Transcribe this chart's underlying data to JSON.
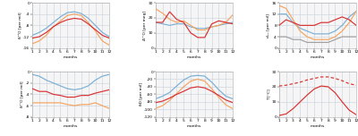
{
  "months": [
    1,
    2,
    3,
    4,
    5,
    6,
    7,
    8,
    9,
    10,
    11,
    12
  ],
  "colors": {
    "blue": "#7bafd4",
    "orange": "#f4a460",
    "red": "#d93030",
    "gray": "#a0a0a0"
  },
  "d18O": {
    "blue": [
      -11.5,
      -10.5,
      -9.0,
      -7.0,
      -5.0,
      -3.5,
      -3.2,
      -3.8,
      -5.5,
      -8.0,
      -10.5,
      -12.0
    ],
    "orange": [
      -14.5,
      -13.5,
      -11.5,
      -8.5,
      -6.5,
      -4.5,
      -4.0,
      -4.5,
      -7.0,
      -10.0,
      -13.5,
      -15.0
    ],
    "red": [
      -12.5,
      -12.0,
      -10.5,
      -8.5,
      -7.0,
      -6.0,
      -5.5,
      -5.8,
      -7.5,
      -9.5,
      -11.5,
      -12.5
    ]
  },
  "d18O_ylim": [
    -16,
    0
  ],
  "d18O_yticks": [
    0,
    -4,
    -8,
    -12,
    -16
  ],
  "d18O_ylabel": "δ¹⁸O [per mil]",
  "Dex": {
    "blue": [
      17,
      16,
      15,
      16,
      16,
      14,
      13,
      13,
      14,
      15,
      16,
      17
    ],
    "orange": [
      26,
      23,
      19,
      17,
      18,
      15,
      12,
      12,
      14,
      15,
      17,
      22
    ],
    "red": [
      17,
      17,
      24,
      19,
      17,
      10,
      7,
      7,
      16,
      18,
      17,
      16
    ]
  },
  "Dex_ylim": [
    0,
    30
  ],
  "Dex_yticks": [
    0,
    10,
    20,
    30
  ],
  "Dex_ylabel": "Δ¹⁷O [per meg]",
  "dex": {
    "blue": [
      12,
      12,
      9,
      7,
      6,
      5,
      5,
      5,
      6,
      8,
      11,
      13
    ],
    "orange": [
      15,
      14,
      10,
      6,
      4,
      3,
      3,
      3,
      4,
      6,
      9,
      13
    ],
    "red": [
      8,
      10,
      9,
      8,
      8,
      8,
      9,
      9,
      10,
      11,
      10,
      8
    ],
    "gray": [
      4,
      4,
      3,
      3,
      2,
      2,
      2,
      2,
      3,
      4,
      4,
      4
    ]
  },
  "dex_ylim": [
    0,
    16
  ],
  "dex_yticks": [
    0,
    4,
    8,
    12,
    16
  ],
  "dex_ylabel": "dₑₓ [per mil]",
  "D17O": {
    "blue": [
      -0.5,
      -0.8,
      -1.5,
      -2.0,
      -2.5,
      -3.0,
      -3.2,
      -3.0,
      -2.5,
      -1.5,
      -0.8,
      -0.5
    ],
    "orange": [
      -5.5,
      -5.5,
      -5.5,
      -5.5,
      -5.5,
      -5.8,
      -6.0,
      -5.8,
      -5.8,
      -5.5,
      -6.0,
      -6.5
    ],
    "red": [
      -3.0,
      -3.5,
      -3.5,
      -4.0,
      -4.2,
      -4.5,
      -4.5,
      -4.2,
      -4.2,
      -3.8,
      -3.5,
      -3.2
    ]
  },
  "D17O_ylim": [
    -8,
    0
  ],
  "D17O_yticks": [
    0,
    -2,
    -4,
    -6,
    -8
  ],
  "D17O_ylabel": "δ¹⁷O [per mil]",
  "dD": {
    "blue": [
      -72,
      -65,
      -55,
      -38,
      -22,
      -12,
      -10,
      -12,
      -28,
      -48,
      -65,
      -72
    ],
    "orange": [
      -97,
      -90,
      -76,
      -58,
      -40,
      -25,
      -20,
      -25,
      -45,
      -68,
      -88,
      -98
    ],
    "red": [
      -82,
      -78,
      -70,
      -60,
      -52,
      -43,
      -40,
      -43,
      -52,
      -63,
      -75,
      -82
    ]
  },
  "dD_ylim": [
    -120,
    0
  ],
  "dD_yticks": [
    0,
    -20,
    -40,
    -60,
    -80,
    -100,
    -120
  ],
  "dD_ylabel": "δD [per mil]",
  "T": {
    "solid_red": [
      1.0,
      2.0,
      5.5,
      10.0,
      14.5,
      18.5,
      20.5,
      20.0,
      16.0,
      10.0,
      4.5,
      1.5
    ],
    "dashed_red": [
      20.5,
      21.0,
      22.0,
      23.0,
      24.5,
      25.5,
      26.5,
      26.5,
      25.5,
      24.0,
      22.0,
      21.0
    ]
  },
  "T_ylim": [
    0,
    30
  ],
  "T_yticks": [
    0,
    10,
    20,
    30
  ],
  "T_ylabel": "T [°C]",
  "bg_color": "#f5f5f5",
  "grid_color": "#c8d0dc"
}
